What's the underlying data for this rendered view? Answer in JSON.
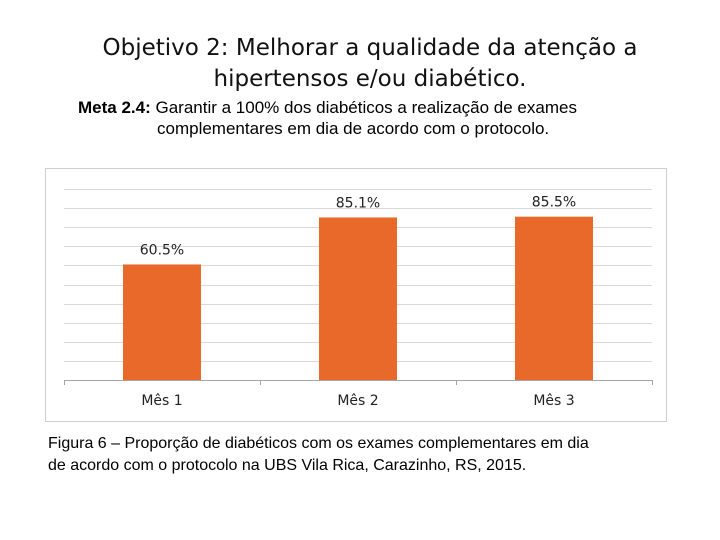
{
  "slide": {
    "title_line1": "Objetivo 2: Melhorar a qualidade da atenção a",
    "title_line2": "hipertensos e/ou diabético.",
    "meta_label": "Meta 2.4:",
    "meta_text_line1": "Garantir a 100% dos diabéticos a realização de exames",
    "meta_text_line2": "complementares em dia de acordo com o protocolo.",
    "caption_line1": "Figura 6 – Proporção de diabéticos com os exames complementares em dia",
    "caption_line2": "de acordo com o protocolo na UBS Vila Rica, Carazinho, RS, 2015."
  },
  "colors": {
    "bar": "#E8692A",
    "grid": "#d9d9d9",
    "axis": "#a6a6a6"
  },
  "chart_data": {
    "type": "bar",
    "categories": [
      "Mês 1",
      "Mês 2",
      "Mês 3"
    ],
    "values": [
      60.5,
      85.1,
      85.5
    ],
    "data_labels": [
      "60.5%",
      "85.1%",
      "85.5%"
    ],
    "title": "",
    "xlabel": "",
    "ylabel": "",
    "ylim": [
      0,
      100
    ],
    "grid": true,
    "legend": "none"
  }
}
